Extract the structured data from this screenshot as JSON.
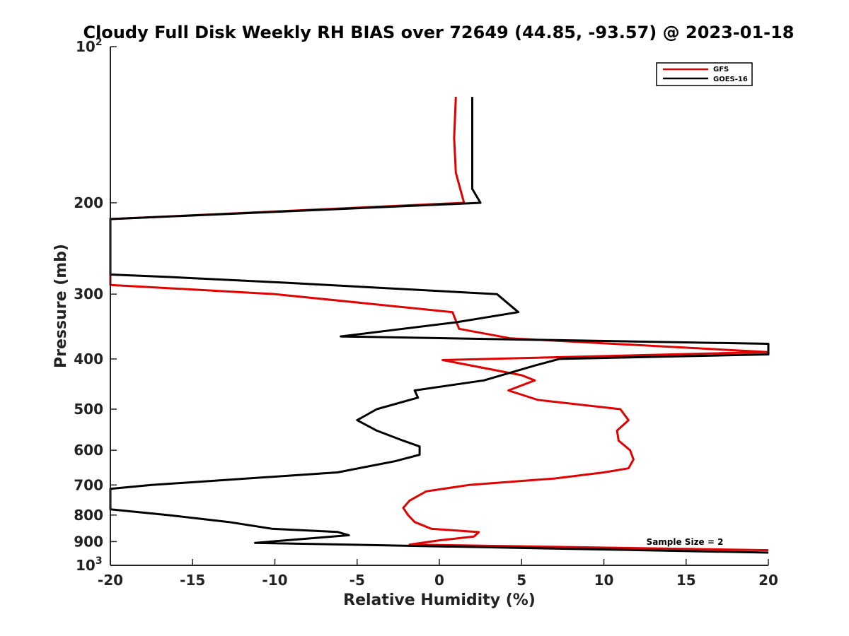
{
  "chart_data": {
    "type": "line",
    "title": "Cloudy Full Disk Weekly RH BIAS over 72649 (44.85, -93.57) @ 2023-01-18",
    "xlabel": "Relative Humidity (%)",
    "ylabel": "Pressure (mb)",
    "xlim": [
      -20,
      20
    ],
    "ylim": [
      100,
      1000
    ],
    "yscale": "log",
    "y_reversed": true,
    "xticks": [
      -20,
      -15,
      -10,
      -5,
      0,
      5,
      10,
      15,
      20
    ],
    "xtick_labels": [
      "-20",
      "-15",
      "-10",
      "-5",
      "0",
      "5",
      "10",
      "15",
      "20"
    ],
    "yticks": [
      {
        "value": 100,
        "label": "10",
        "exp": "2"
      },
      {
        "value": 200,
        "label": "200",
        "exp": ""
      },
      {
        "value": 300,
        "label": "300",
        "exp": ""
      },
      {
        "value": 400,
        "label": "400",
        "exp": ""
      },
      {
        "value": 500,
        "label": "500",
        "exp": ""
      },
      {
        "value": 600,
        "label": "600",
        "exp": ""
      },
      {
        "value": 700,
        "label": "700",
        "exp": ""
      },
      {
        "value": 800,
        "label": "800",
        "exp": ""
      },
      {
        "value": 900,
        "label": "900",
        "exp": ""
      },
      {
        "value": 1000,
        "label": "10",
        "exp": "3"
      }
    ],
    "grid": false,
    "legend_position": "top-right",
    "annotation": "Sample Size = 2",
    "series": [
      {
        "name": "GFS",
        "color": "#e00000",
        "points": [
          [
            1.0,
            125
          ],
          [
            0.9,
            150
          ],
          [
            1.0,
            175
          ],
          [
            1.5,
            200
          ],
          [
            -20,
            215
          ],
          [
            -20,
            288
          ],
          [
            -10,
            300
          ],
          [
            0.8,
            325
          ],
          [
            1.2,
            350
          ],
          [
            4.3,
            365
          ],
          [
            20,
            388
          ],
          [
            0.2,
            402
          ],
          [
            5.0,
            430
          ],
          [
            5.8,
            440
          ],
          [
            4.2,
            460
          ],
          [
            6.0,
            480
          ],
          [
            11.0,
            500
          ],
          [
            11.5,
            525
          ],
          [
            10.8,
            550
          ],
          [
            10.9,
            575
          ],
          [
            11.6,
            600
          ],
          [
            11.8,
            625
          ],
          [
            11.5,
            650
          ],
          [
            10.0,
            662
          ],
          [
            7.0,
            680
          ],
          [
            1.8,
            700
          ],
          [
            -0.8,
            720
          ],
          [
            -1.8,
            750
          ],
          [
            -2.2,
            775
          ],
          [
            -1.9,
            800
          ],
          [
            -1.5,
            825
          ],
          [
            -0.5,
            850
          ],
          [
            2.4,
            863
          ],
          [
            2.1,
            880
          ],
          [
            0.0,
            895
          ],
          [
            -1.8,
            912
          ],
          [
            20,
            935
          ]
        ]
      },
      {
        "name": "GOES-16",
        "color": "#000000",
        "points": [
          [
            2.0,
            125
          ],
          [
            2.0,
            150
          ],
          [
            2.0,
            175
          ],
          [
            2.0,
            188
          ],
          [
            2.5,
            200
          ],
          [
            -20,
            215
          ],
          [
            -20,
            275
          ],
          [
            -16.5,
            278
          ],
          [
            -9.5,
            285
          ],
          [
            3.5,
            300
          ],
          [
            4.8,
            325
          ],
          [
            1.0,
            340
          ],
          [
            -6.0,
            362
          ],
          [
            20,
            374
          ],
          [
            20,
            392
          ],
          [
            7.3,
            400
          ],
          [
            5.8,
            412
          ],
          [
            2.7,
            440
          ],
          [
            -1.5,
            460
          ],
          [
            -1.3,
            475
          ],
          [
            -3.8,
            500
          ],
          [
            -5.0,
            525
          ],
          [
            -3.8,
            550
          ],
          [
            -2.2,
            575
          ],
          [
            -1.2,
            590
          ],
          [
            -1.2,
            612
          ],
          [
            -2.7,
            630
          ],
          [
            -6.2,
            662
          ],
          [
            -17.5,
            700
          ],
          [
            -20,
            712
          ],
          [
            -20,
            780
          ],
          [
            -16.5,
            800
          ],
          [
            -12.8,
            825
          ],
          [
            -10.2,
            850
          ],
          [
            -6.2,
            862
          ],
          [
            -5.5,
            875
          ],
          [
            -11.2,
            905
          ],
          [
            20,
            945
          ]
        ]
      }
    ]
  }
}
